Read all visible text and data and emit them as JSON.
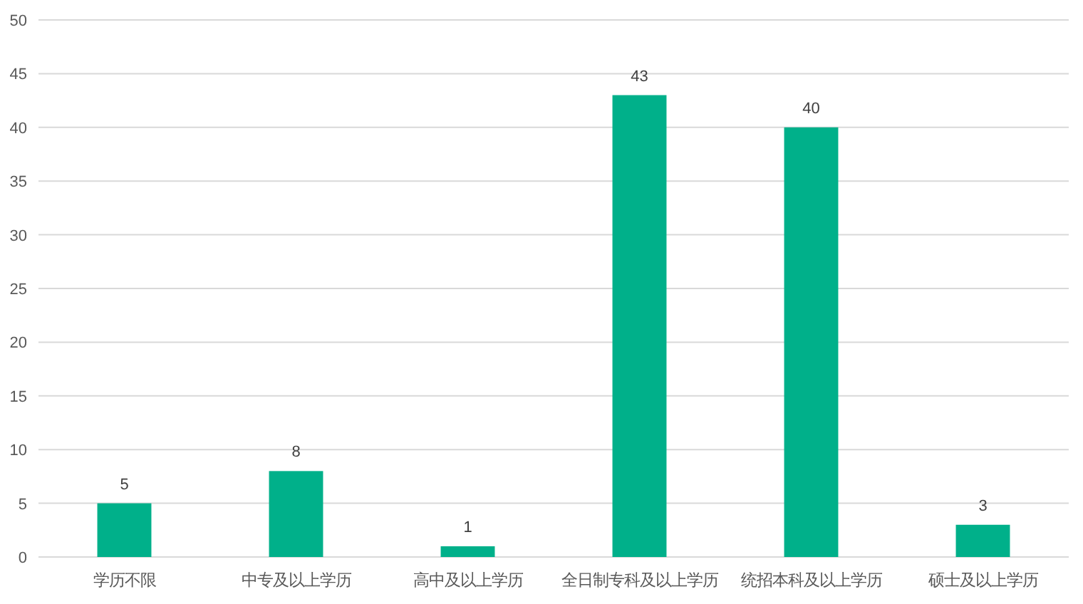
{
  "chart_data": {
    "type": "bar",
    "categories": [
      "学历不限",
      "中专及以上学历",
      "高中及以上学历",
      "全日制专科及以上学历",
      "统招本科及以上学历",
      "硕士及以上学历"
    ],
    "values": [
      5,
      8,
      1,
      43,
      40,
      3
    ],
    "color": "#00b08a",
    "ylim": [
      0,
      50
    ],
    "yticks": [
      0,
      5,
      10,
      15,
      20,
      25,
      30,
      35,
      40,
      45,
      50
    ],
    "grid": "y",
    "data_labels": true
  }
}
